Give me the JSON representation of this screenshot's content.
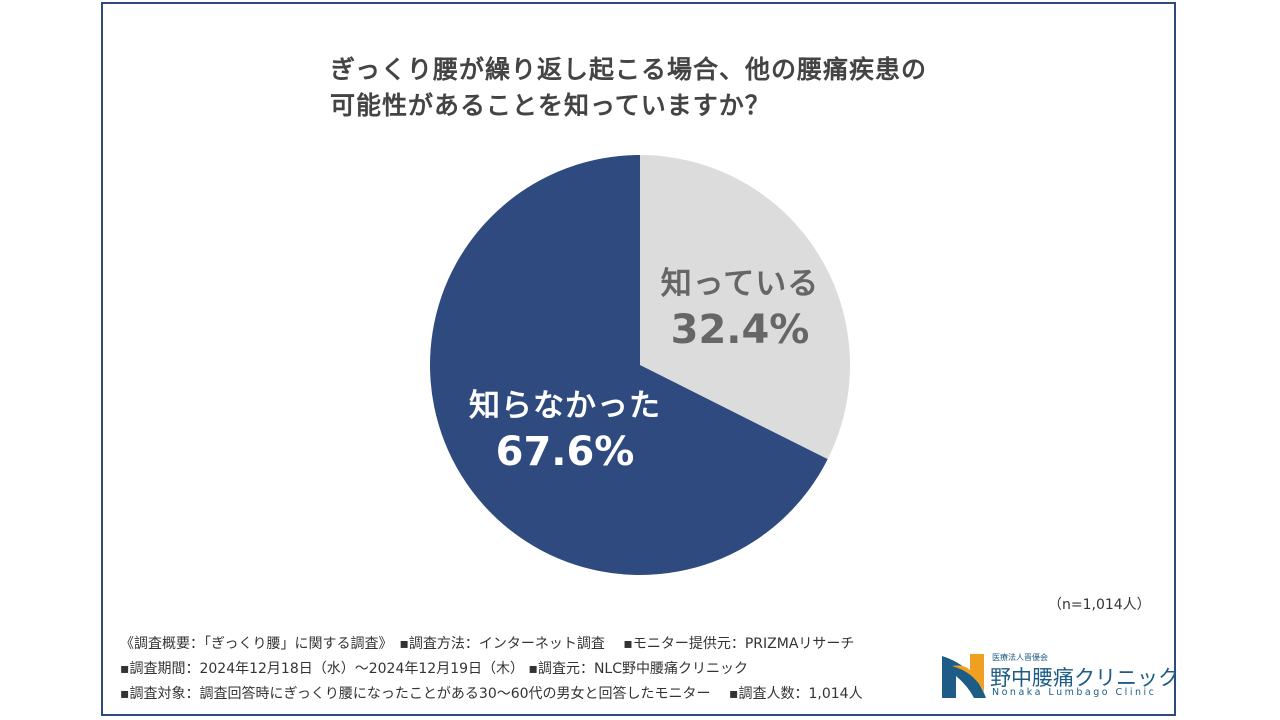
{
  "chart_data": {
    "type": "pie",
    "title": "ぎっくり腰が繰り返し起こる場合、他の腰痛疾患の可能性があることを知っていますか？",
    "title_lines": [
      "ぎっくり腰が繰り返し起こる場合、他の腰痛疾患の",
      "可能性があることを知っていますか？"
    ],
    "slices": [
      {
        "label": "知っている",
        "value": 32.4,
        "display": "32.4%",
        "color": "#dcdcdc"
      },
      {
        "label": "知らなかった",
        "value": 67.6,
        "display": "67.6%",
        "color": "#2e4a7f"
      }
    ],
    "start": "top",
    "direction": "clockwise"
  },
  "sample_size": "（n=1,014人）",
  "notes": [
    "《調査概要：「ぎっくり腰」に関する調査》　▪調査方法：インターネット調査　 ▪モニター提供元：PRIZMAリサーチ",
    "▪調査期間：2024年12月18日（水）～2024年12月19日（木）  ▪調査元：NLC野中腰痛クリニック",
    "▪調査対象：調査回答時にぎっくり腰になったことがある30～60代の男女と回答したモニター　 ▪調査人数：1,014人"
  ],
  "logo": {
    "subtitle": "医療法人晋優会",
    "name": "野中腰痛クリニック",
    "english": "Nonaka Lumbago Clinic",
    "colors": {
      "blue": "#1d5c86",
      "orange": "#f0a020"
    }
  },
  "frame_color": "#2e4a7f"
}
